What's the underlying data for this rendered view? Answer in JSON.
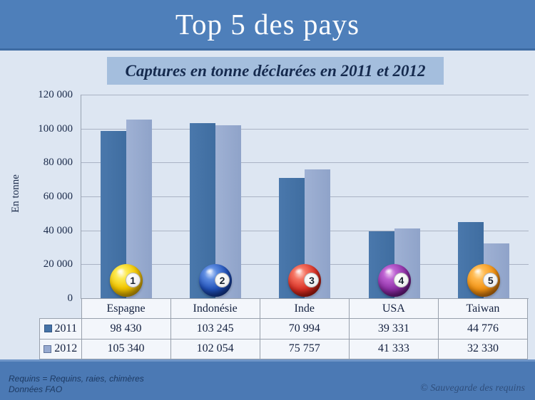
{
  "header": {
    "title": "Top 5 des pays"
  },
  "chart": {
    "subtitle": "Captures en tonne déclarées en 2011 et 2012",
    "y_axis_title": "En tonne"
  },
  "chart_data": {
    "type": "bar",
    "title": "Captures en tonne déclarées en 2011 et 2012",
    "categories": [
      "Espagne",
      "Indonésie",
      "Inde",
      "USA",
      "Taiwan"
    ],
    "series": [
      {
        "name": "2011",
        "color": "#4573a7",
        "values": [
          98430,
          103245,
          70994,
          39331,
          44776
        ]
      },
      {
        "name": "2012",
        "color": "#97aad0",
        "values": [
          105340,
          102054,
          75757,
          41333,
          32330
        ]
      }
    ],
    "value_labels": [
      [
        "98 430",
        "103 245",
        "70 994",
        "39 331",
        "44 776"
      ],
      [
        "105 340",
        "102 054",
        "75 757",
        "41 333",
        "32 330"
      ]
    ],
    "ylabel": "En tonne",
    "ylim": [
      0,
      120000
    ],
    "ytick_step": 20000,
    "yticks_top_to_bottom": [
      "120 000",
      "100 000",
      "80 000",
      "60 000",
      "40 000",
      "20 000",
      "0"
    ],
    "grid": true,
    "legend_position": "data-table-left",
    "rank_balls": [
      {
        "rank": "1",
        "color_name": "yellow",
        "hex": "#f2c500"
      },
      {
        "rank": "2",
        "color_name": "blue",
        "hex": "#2050b8"
      },
      {
        "rank": "3",
        "color_name": "red",
        "hex": "#d93025"
      },
      {
        "rank": "4",
        "color_name": "purple",
        "hex": "#8d2fa5"
      },
      {
        "rank": "5",
        "color_name": "orange",
        "hex": "#f29212"
      }
    ]
  },
  "footer": {
    "note_line1": "Requins = Requins, raies, chimères",
    "note_line2": "Données FAO",
    "copyright": "© Sauvegarde des requins"
  },
  "colors": {
    "header_band": "#4e7fba",
    "footer_band": "#4b79b4",
    "background": "#dde6f2",
    "subtitle_highlight": "#a4bedd",
    "series_2011": "#4573a7",
    "series_2012": "#97aad0"
  }
}
